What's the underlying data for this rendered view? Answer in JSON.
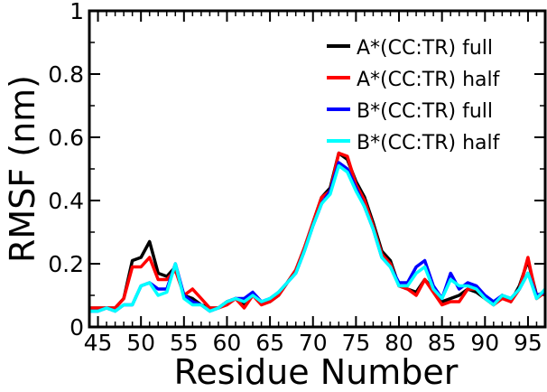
{
  "chart_data": {
    "type": "line",
    "xlabel": "Residue Number",
    "ylabel": "RMSF (nm)",
    "xlim": [
      44,
      97
    ],
    "ylim": [
      0,
      1
    ],
    "xticks": [
      45,
      50,
      55,
      60,
      65,
      70,
      75,
      80,
      85,
      90,
      95
    ],
    "yticks": [
      0,
      0.2,
      0.4,
      0.6,
      0.8,
      1
    ],
    "ytick_labels": [
      "0",
      "0.2",
      "0.4",
      "0.6",
      "0.8",
      "1"
    ],
    "legend_position": "top-right",
    "x": [
      44,
      45,
      46,
      47,
      48,
      49,
      50,
      51,
      52,
      53,
      54,
      55,
      56,
      57,
      58,
      59,
      60,
      61,
      62,
      63,
      64,
      65,
      66,
      67,
      68,
      69,
      70,
      71,
      72,
      73,
      74,
      75,
      76,
      77,
      78,
      79,
      80,
      81,
      82,
      83,
      84,
      85,
      86,
      87,
      88,
      89,
      90,
      91,
      92,
      93,
      94,
      95,
      96,
      97
    ],
    "series": [
      {
        "name": "A*(CC:TR) full",
        "color": "#000000",
        "values": [
          0.06,
          0.06,
          0.06,
          0.06,
          0.09,
          0.21,
          0.22,
          0.27,
          0.17,
          0.16,
          0.19,
          0.1,
          0.09,
          0.07,
          0.06,
          0.06,
          0.08,
          0.09,
          0.07,
          0.1,
          0.08,
          0.08,
          0.1,
          0.14,
          0.18,
          0.25,
          0.33,
          0.41,
          0.44,
          0.55,
          0.53,
          0.46,
          0.41,
          0.33,
          0.24,
          0.21,
          0.13,
          0.12,
          0.11,
          0.15,
          0.12,
          0.08,
          0.09,
          0.1,
          0.12,
          0.11,
          0.09,
          0.07,
          0.1,
          0.08,
          0.13,
          0.21,
          0.1,
          0.11
        ]
      },
      {
        "name": "A*(CC:TR) half",
        "color": "#ff0000",
        "values": [
          0.06,
          0.06,
          0.06,
          0.06,
          0.09,
          0.19,
          0.19,
          0.22,
          0.15,
          0.15,
          0.18,
          0.1,
          0.12,
          0.09,
          0.06,
          0.06,
          0.07,
          0.09,
          0.06,
          0.1,
          0.07,
          0.08,
          0.1,
          0.14,
          0.18,
          0.25,
          0.33,
          0.41,
          0.43,
          0.55,
          0.54,
          0.45,
          0.4,
          0.32,
          0.23,
          0.2,
          0.13,
          0.12,
          0.1,
          0.15,
          0.11,
          0.07,
          0.08,
          0.08,
          0.12,
          0.12,
          0.09,
          0.07,
          0.09,
          0.08,
          0.12,
          0.22,
          0.09,
          0.11
        ]
      },
      {
        "name": "B*(CC:TR) full",
        "color": "#0000ff",
        "values": [
          0.05,
          0.05,
          0.06,
          0.05,
          0.07,
          0.07,
          0.13,
          0.14,
          0.12,
          0.12,
          0.2,
          0.1,
          0.08,
          0.07,
          0.05,
          0.06,
          0.08,
          0.09,
          0.09,
          0.11,
          0.08,
          0.09,
          0.11,
          0.14,
          0.17,
          0.24,
          0.32,
          0.39,
          0.43,
          0.52,
          0.5,
          0.44,
          0.38,
          0.31,
          0.22,
          0.19,
          0.14,
          0.14,
          0.19,
          0.21,
          0.13,
          0.09,
          0.17,
          0.12,
          0.14,
          0.13,
          0.1,
          0.08,
          0.1,
          0.09,
          0.12,
          0.17,
          0.1,
          0.11
        ]
      },
      {
        "name": "B*(CC:TR) half",
        "color": "#00ffff",
        "values": [
          0.05,
          0.05,
          0.06,
          0.05,
          0.07,
          0.07,
          0.13,
          0.14,
          0.1,
          0.11,
          0.2,
          0.09,
          0.07,
          0.07,
          0.05,
          0.06,
          0.08,
          0.09,
          0.08,
          0.1,
          0.08,
          0.09,
          0.11,
          0.14,
          0.17,
          0.24,
          0.32,
          0.39,
          0.42,
          0.51,
          0.49,
          0.43,
          0.38,
          0.31,
          0.22,
          0.19,
          0.13,
          0.13,
          0.17,
          0.19,
          0.12,
          0.09,
          0.15,
          0.13,
          0.13,
          0.12,
          0.09,
          0.07,
          0.1,
          0.09,
          0.12,
          0.17,
          0.09,
          0.12
        ]
      }
    ]
  }
}
